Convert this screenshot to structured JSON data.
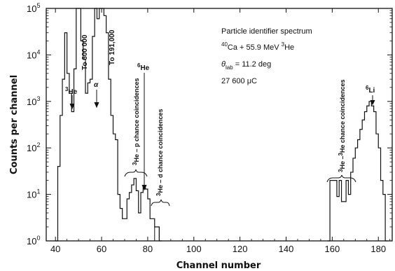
{
  "chart_data": {
    "type": "line",
    "xlabel": "Channel number",
    "ylabel": "Counts per channel",
    "xlim": [
      36,
      186
    ],
    "ylim": [
      1,
      100000
    ],
    "yscale": "log",
    "x_ticks": [
      40,
      60,
      80,
      100,
      120,
      140,
      160,
      180
    ],
    "x_tick_labels": [
      "40",
      "60",
      "80",
      "100",
      "120",
      "140",
      "160",
      "180"
    ],
    "y_ticks": [
      {
        "base": "10",
        "exp": "0",
        "value": 1
      },
      {
        "base": "10",
        "exp": "1",
        "value": 10
      },
      {
        "base": "10",
        "exp": "2",
        "value": 100
      },
      {
        "base": "10",
        "exp": "3",
        "value": 1000
      },
      {
        "base": "10",
        "exp": "4",
        "value": 10000
      },
      {
        "base": "10",
        "exp": "5",
        "value": 100000
      }
    ],
    "grid": false,
    "series": [
      {
        "style": "step",
        "points": [
          [
            40,
            1
          ],
          [
            41,
            40
          ],
          [
            42,
            500
          ],
          [
            43,
            3000
          ],
          [
            44,
            30000
          ],
          [
            45,
            4000
          ],
          [
            46,
            1500
          ],
          [
            47,
            600
          ],
          [
            48,
            5000
          ],
          [
            49,
            100000
          ],
          [
            50,
            100000
          ],
          [
            51,
            20000
          ],
          [
            52,
            8000
          ],
          [
            53,
            1500
          ],
          [
            54,
            2500
          ],
          [
            55,
            3000
          ],
          [
            56,
            25000
          ],
          [
            57,
            100000
          ],
          [
            58,
            60000
          ],
          [
            59,
            100000
          ],
          [
            60,
            100000
          ],
          [
            61,
            70000
          ],
          [
            62,
            30000
          ],
          [
            63,
            3000
          ],
          [
            64,
            500
          ],
          [
            65,
            200
          ],
          [
            66,
            150
          ],
          [
            67,
            10
          ],
          [
            68,
            5
          ],
          [
            69,
            3
          ],
          [
            70,
            3
          ],
          [
            71,
            8
          ],
          [
            72,
            11
          ],
          [
            73,
            16
          ],
          [
            74,
            22
          ],
          [
            75,
            12
          ],
          [
            76,
            4
          ],
          [
            77,
            11
          ],
          [
            78,
            14
          ],
          [
            79,
            13
          ],
          [
            80,
            8
          ],
          [
            81,
            3
          ],
          [
            82,
            3
          ],
          [
            83,
            2
          ],
          [
            84,
            2
          ],
          [
            85,
            1
          ]
        ]
      },
      {
        "style": "step",
        "points": [
          [
            158,
            1
          ],
          [
            159,
            20
          ],
          [
            160,
            20
          ],
          [
            161,
            20
          ],
          [
            162,
            9
          ],
          [
            163,
            20
          ],
          [
            164,
            7
          ],
          [
            165,
            7
          ],
          [
            166,
            20
          ],
          [
            167,
            10
          ],
          [
            168,
            30
          ],
          [
            169,
            60
          ],
          [
            170,
            100
          ],
          [
            171,
            150
          ],
          [
            172,
            250
          ],
          [
            173,
            400
          ],
          [
            174,
            600
          ],
          [
            175,
            800
          ],
          [
            176,
            1000
          ],
          [
            177,
            800
          ],
          [
            178,
            600
          ],
          [
            179,
            200
          ],
          [
            180,
            100
          ],
          [
            181,
            20
          ],
          [
            182,
            10
          ],
          [
            183,
            1
          ]
        ]
      }
    ],
    "info": {
      "line1": "Particle identifier spectrum",
      "line2_sup1": "40",
      "line2_main": "Ca + 55.9 MeV",
      "line2_sup2": "3",
      "line2_end": "He",
      "line3_theta": "θ",
      "line3_sub": "lab",
      "line3_end": "= 11.2 deg",
      "line4": "27 600 μC"
    },
    "annotations": {
      "to600": "To 600 000",
      "to191": "To 191,000",
      "he3_sup": "3",
      "he3": "He",
      "alpha": "α",
      "he6_sup": "6",
      "he6": "He",
      "hep_sup": "3",
      "hep": "He – p  chance coincidences",
      "hed_sup": "3",
      "hed": "He – d  chance coincidences",
      "hehe_sup1": "3",
      "hehe_mid": "He –",
      "hehe_sup2": "3",
      "hehe_end": "He  chance coincidences",
      "li6_sup": "6",
      "li6": "Li"
    }
  }
}
